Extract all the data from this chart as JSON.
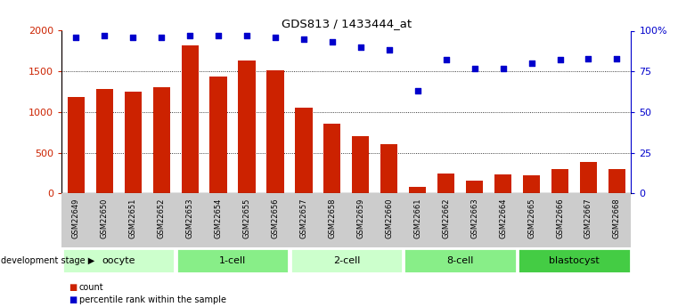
{
  "title": "GDS813 / 1433444_at",
  "categories": [
    "GSM22649",
    "GSM22650",
    "GSM22651",
    "GSM22652",
    "GSM22653",
    "GSM22654",
    "GSM22655",
    "GSM22656",
    "GSM22657",
    "GSM22658",
    "GSM22659",
    "GSM22660",
    "GSM22661",
    "GSM22662",
    "GSM22663",
    "GSM22664",
    "GSM22665",
    "GSM22666",
    "GSM22667",
    "GSM22668"
  ],
  "counts": [
    1180,
    1280,
    1250,
    1305,
    1820,
    1440,
    1630,
    1510,
    1050,
    855,
    700,
    600,
    85,
    240,
    160,
    235,
    220,
    295,
    385,
    295
  ],
  "percentiles": [
    96,
    97,
    96,
    96,
    97,
    97,
    97,
    96,
    95,
    93,
    90,
    88,
    63,
    82,
    77,
    77,
    80,
    82,
    83,
    83
  ],
  "bar_color": "#cc2200",
  "dot_color": "#0000cc",
  "groups": [
    {
      "label": "oocyte",
      "start": 0,
      "end": 3,
      "color": "#ccffcc"
    },
    {
      "label": "1-cell",
      "start": 4,
      "end": 7,
      "color": "#88ee88"
    },
    {
      "label": "2-cell",
      "start": 8,
      "end": 11,
      "color": "#ccffcc"
    },
    {
      "label": "8-cell",
      "start": 12,
      "end": 15,
      "color": "#88ee88"
    },
    {
      "label": "blastocyst",
      "start": 16,
      "end": 19,
      "color": "#44cc44"
    }
  ],
  "ylim_left": [
    0,
    2000
  ],
  "ylim_right": [
    0,
    100
  ],
  "yticks_left": [
    0,
    500,
    1000,
    1500,
    2000
  ],
  "yticks_right": [
    0,
    25,
    50,
    75,
    100
  ],
  "ytick_labels_right": [
    "0",
    "25",
    "50",
    "75",
    "100%"
  ],
  "cat_bg_color": "#cccccc",
  "plot_bg_color": "#ffffff",
  "spine_color": "#000000"
}
